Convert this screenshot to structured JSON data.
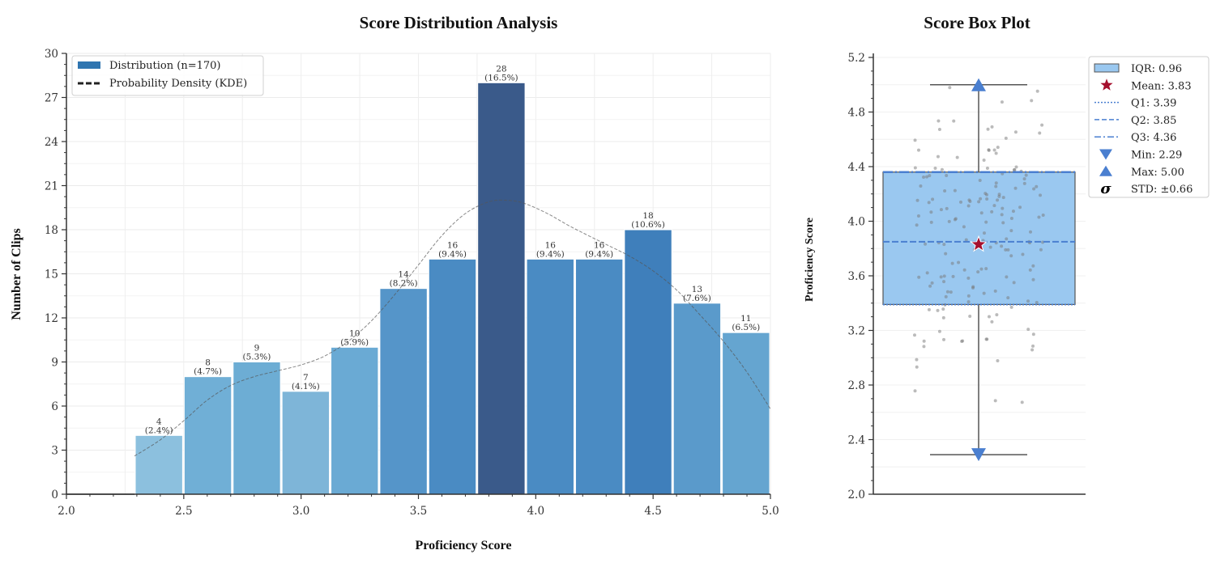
{
  "chart_data": [
    {
      "type": "bar",
      "title": "Score Distribution Analysis",
      "xlabel": "Proficiency Score",
      "ylabel": "Number of Clips",
      "xlim": [
        2.0,
        5.0
      ],
      "ylim": [
        0,
        30
      ],
      "xticks": [
        "2.0",
        "2.5",
        "3.0",
        "3.5",
        "4.0",
        "4.5",
        "5.0"
      ],
      "yticks": [
        "0",
        "3",
        "6",
        "9",
        "12",
        "15",
        "18",
        "21",
        "24",
        "27",
        "30"
      ],
      "grid": true,
      "legend_position": "top-left",
      "legend": [
        "Distribution (n=170)",
        "Probability Density (KDE)"
      ],
      "bin_start": 2.29,
      "bin_end": 5.0,
      "counts": [
        4,
        8,
        9,
        7,
        10,
        14,
        16,
        28,
        16,
        16,
        18,
        13,
        11
      ],
      "labels": [
        "4",
        "8",
        "9",
        "7",
        "10",
        "14",
        "16",
        "28",
        "16",
        "16",
        "18",
        "13",
        "11"
      ],
      "percent_labels": [
        "(2.4%)",
        "(4.7%)",
        "(5.3%)",
        "(4.1%)",
        "(5.9%)",
        "(8.2%)",
        "(9.4%)",
        "(16.5%)",
        "(9.4%)",
        "(9.4%)",
        "(10.6%)",
        "(7.6%)",
        "(6.5%)"
      ],
      "bar_colors": [
        "#8cc0de",
        "#70afd6",
        "#6dadd4",
        "#7eb5d8",
        "#6aaad4",
        "#5595c9",
        "#4a8bc3",
        "#3a5a8a",
        "#4a8bc3",
        "#4a8bc3",
        "#3f7fbb",
        "#5a9acb",
        "#65a5d0"
      ],
      "kde": {
        "x": [
          2.29,
          2.4,
          2.5,
          2.6,
          2.7,
          2.8,
          2.9,
          3.0,
          3.1,
          3.2,
          3.3,
          3.4,
          3.5,
          3.6,
          3.7,
          3.8,
          3.88,
          3.95,
          4.05,
          4.15,
          4.3,
          4.4,
          4.5,
          4.6,
          4.7,
          4.8,
          4.9,
          5.0
        ],
        "y": [
          2.6,
          3.7,
          5.0,
          6.4,
          7.4,
          8.0,
          8.4,
          8.8,
          9.4,
          10.4,
          11.8,
          13.6,
          15.6,
          17.6,
          19.1,
          19.9,
          20.0,
          19.8,
          19.1,
          18.2,
          17.0,
          16.2,
          15.2,
          13.9,
          12.2,
          10.4,
          8.3,
          5.8
        ]
      }
    },
    {
      "type": "box",
      "title": "Score Box Plot",
      "ylabel": "Proficiency Score",
      "ylim": [
        2.0,
        5.2
      ],
      "yticks": [
        "2.0",
        "2.4",
        "2.8",
        "3.2",
        "3.6",
        "4.0",
        "4.4",
        "4.8",
        "5.2"
      ],
      "q1": 3.39,
      "median": 3.85,
      "q3": 4.36,
      "min": 2.29,
      "max": 5.0,
      "mean": 3.83,
      "std": 0.66,
      "n_points": 170,
      "box_color": "#9ac8f0",
      "line_color": "#4a7fd0",
      "mean_color": "#a50f2d",
      "legend_position": "top-right",
      "legend": [
        "IQR: 0.96",
        "Mean: 3.83",
        "Q1: 3.39",
        "Q2: 3.85",
        "Q3: 4.36",
        "Min: 2.29",
        "Max: 5.00",
        "STD: ±0.66"
      ],
      "sigma_symbol": "σ"
    }
  ]
}
